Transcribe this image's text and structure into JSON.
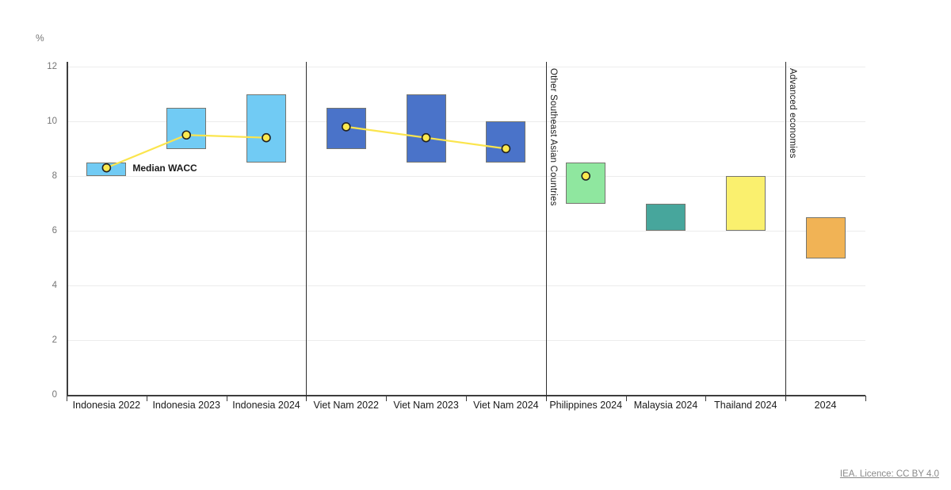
{
  "page": {
    "licence_text": "IEA. Licence: CC BY 4.0"
  },
  "chart_data": {
    "type": "bar",
    "subtype": "floating-range-bars-with-median-points",
    "title": "",
    "xlabel": "",
    "ylabel": "%",
    "ylim": [
      0,
      12
    ],
    "yticks": [
      0,
      2,
      4,
      6,
      8,
      10,
      12
    ],
    "grid": true,
    "legend_position": "none",
    "categories": [
      "Indonesia 2022",
      "Indonesia 2023",
      "Indonesia 2024",
      "Viet Nam 2022",
      "Viet Nam 2023",
      "Viet Nam 2024",
      "Philippines 2024",
      "Malaysia 2024",
      "Thailand 2024",
      "2024"
    ],
    "bars": [
      {
        "label": "Indonesia 2022",
        "low": 8.0,
        "high": 8.5,
        "median": 8.3,
        "color": "#71CBF4"
      },
      {
        "label": "Indonesia 2023",
        "low": 9.0,
        "high": 10.5,
        "median": 9.5,
        "color": "#71CBF4"
      },
      {
        "label": "Indonesia 2024",
        "low": 8.5,
        "high": 11.0,
        "median": 9.4,
        "color": "#71CBF4"
      },
      {
        "label": "Viet Nam 2022",
        "low": 9.0,
        "high": 10.5,
        "median": 9.8,
        "color": "#4A73C9"
      },
      {
        "label": "Viet Nam 2023",
        "low": 8.5,
        "high": 11.0,
        "median": 9.4,
        "color": "#4A73C9"
      },
      {
        "label": "Viet Nam 2024",
        "low": 8.5,
        "high": 10.0,
        "median": 9.0,
        "color": "#4A73C9"
      },
      {
        "label": "Philippines 2024",
        "low": 7.0,
        "high": 8.5,
        "median": 8.0,
        "color": "#8FE79F"
      },
      {
        "label": "Malaysia 2024",
        "low": 6.0,
        "high": 7.0,
        "median": null,
        "color": "#47A69C"
      },
      {
        "label": "Thailand 2024",
        "low": 6.0,
        "high": 8.0,
        "median": null,
        "color": "#FAF06E"
      },
      {
        "label": "2024",
        "low": 5.0,
        "high": 6.5,
        "median": null,
        "color": "#F1B355"
      }
    ],
    "median_line": {
      "label": "Median WACC",
      "line_color": "#FBE54D",
      "point_fill": "#FCE94F",
      "point_stroke": "#222222",
      "segments": [
        [
          0,
          1,
          2
        ],
        [
          3,
          4,
          5
        ]
      ]
    },
    "group_dividers": [
      {
        "after_index": 2,
        "label": ""
      },
      {
        "after_index": 5,
        "label": "Other Southeast Asian Countries"
      },
      {
        "after_index": 8,
        "label": "Advanced economies"
      }
    ]
  }
}
